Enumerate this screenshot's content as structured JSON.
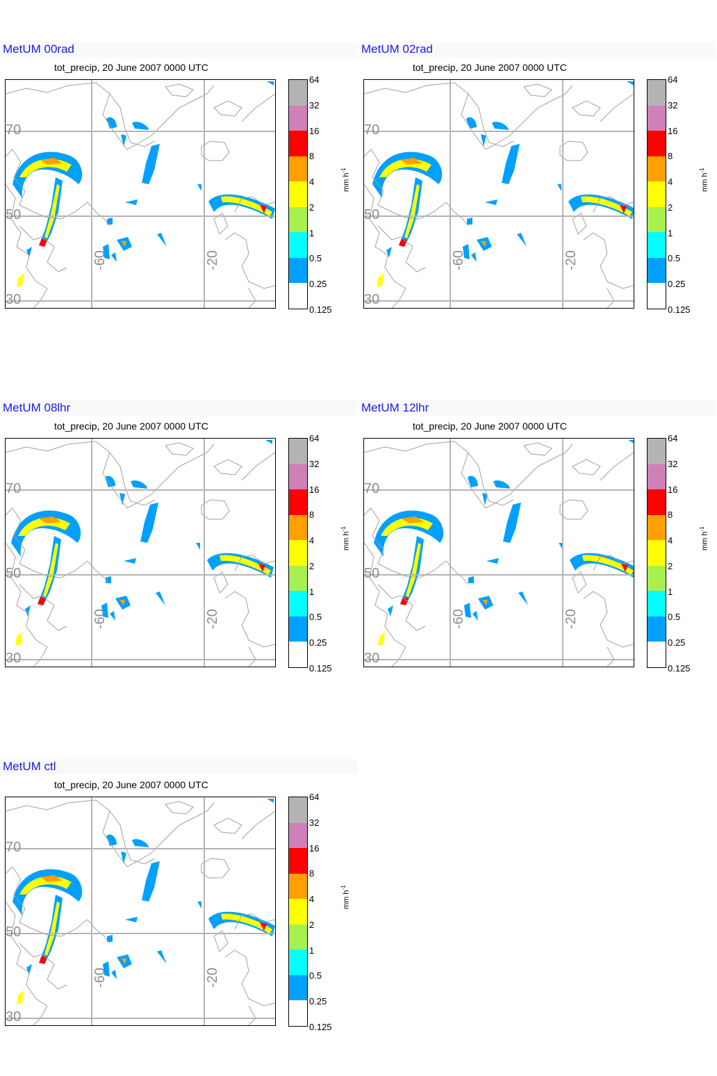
{
  "subtitle": "tot_precip, 20 June 2007 0000 UTC",
  "panels": [
    {
      "title": "MetUM 00rad"
    },
    {
      "title": "MetUM 02rad"
    },
    {
      "title": "MetUM 08lhr"
    },
    {
      "title": "MetUM 12lhr"
    },
    {
      "title": "MetUM ctl"
    }
  ],
  "latitude_labels": [
    "70",
    "50",
    "30"
  ],
  "longitude_labels": [
    "-60",
    "-20"
  ],
  "colorbar": {
    "unit": "mm h",
    "unit_exponent": "-1",
    "ticks": [
      "64",
      "32",
      "16",
      "8",
      "4",
      "2",
      "1",
      "0.5",
      "0.25",
      "0.125"
    ],
    "colors": [
      "#b4b4b4",
      "#d080b8",
      "#ff0000",
      "#ffa000",
      "#ffff00",
      "#a8f050",
      "#00ffff",
      "#00a0ff",
      "#ffffff"
    ]
  },
  "map_colors": {
    "coastline": "#a0a0a0",
    "gridline": "#b4b4b4",
    "precip_light": "#00a0ff",
    "precip_mid": "#00ffff",
    "precip_moderate": "#ffff00",
    "precip_heavy": "#ffa000",
    "precip_extreme": "#ff0000"
  }
}
